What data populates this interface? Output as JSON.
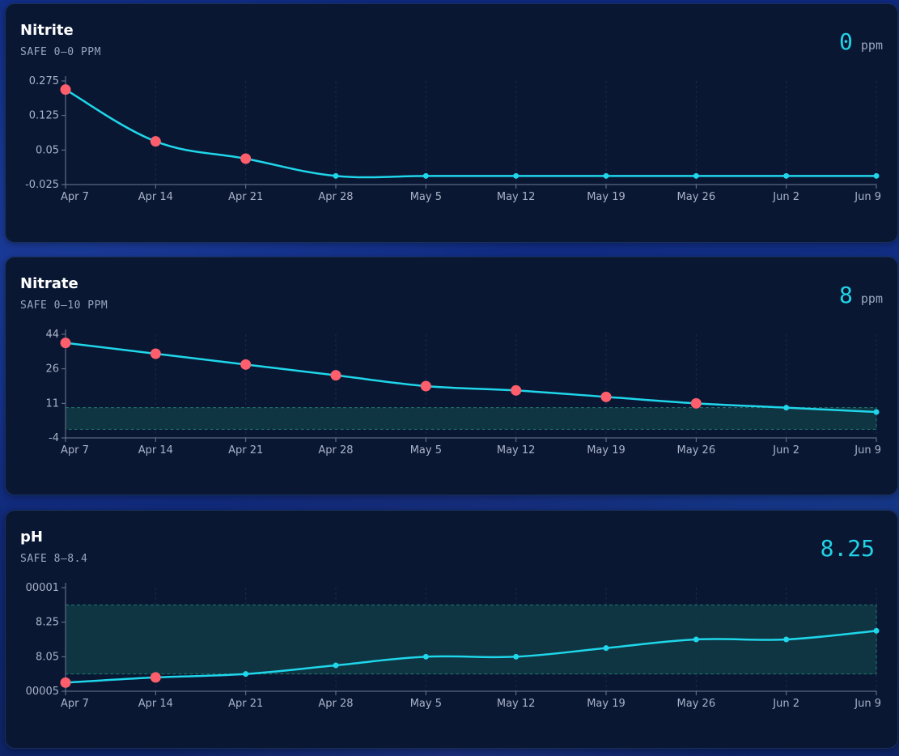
{
  "colors": {
    "line": "#1fd6ea",
    "alert_point": "#ff5e6c",
    "safe_fill": "#0f3b44",
    "safe_stroke": "#1f7a70",
    "axis": "#6d7894",
    "grid": "#1b2a4b"
  },
  "cards": [
    {
      "title": "Nitrite",
      "safe_label": "SAFE 0–0 PPM",
      "value": "0",
      "unit": "ppm"
    },
    {
      "title": "Nitrate",
      "safe_label": "SAFE 0–10 PPM",
      "value": "8",
      "unit": "ppm"
    },
    {
      "title": "pH",
      "safe_label": "SAFE 8–8.4",
      "value": "8.25",
      "unit": ""
    }
  ],
  "chart_data": [
    {
      "type": "line",
      "title": "Nitrite",
      "x": [
        "Apr 7",
        "Apr 14",
        "Apr 21",
        "Apr 28",
        "May 5",
        "May 12",
        "May 19",
        "May 26",
        "Jun 2",
        "Jun 9"
      ],
      "y": [
        0.25,
        0.1,
        0.05,
        0,
        0,
        0,
        0,
        0,
        0,
        0
      ],
      "alert": [
        true,
        true,
        true,
        false,
        false,
        false,
        false,
        false,
        false,
        false
      ],
      "yticks": [
        "0.275",
        "0.125",
        "0.05",
        "-0.025"
      ],
      "ylim": [
        -0.025,
        0.275
      ],
      "safe_range": [
        0,
        0
      ],
      "grid": true
    },
    {
      "type": "line",
      "title": "Nitrate",
      "x": [
        "Apr 7",
        "Apr 14",
        "Apr 21",
        "Apr 28",
        "May 5",
        "May 12",
        "May 19",
        "May 26",
        "Jun 2",
        "Jun 9"
      ],
      "y": [
        40,
        35,
        30,
        25,
        20,
        18,
        15,
        12,
        10,
        8
      ],
      "alert": [
        true,
        true,
        true,
        true,
        true,
        true,
        true,
        true,
        false,
        false
      ],
      "yticks": [
        "44",
        "26",
        "11",
        "-4"
      ],
      "ylim": [
        -4,
        44
      ],
      "safe_range": [
        0,
        10
      ],
      "grid": true
    },
    {
      "type": "line",
      "title": "pH",
      "x": [
        "Apr 7",
        "Apr 14",
        "Apr 21",
        "Apr 28",
        "May 5",
        "May 12",
        "May 19",
        "May 26",
        "Jun 2",
        "Jun 9"
      ],
      "y": [
        7.95,
        7.98,
        8.0,
        8.05,
        8.1,
        8.1,
        8.15,
        8.2,
        8.2,
        8.25
      ],
      "alert": [
        true,
        true,
        false,
        false,
        false,
        false,
        false,
        false,
        false,
        false
      ],
      "yticks": [
        "00001",
        "8.25",
        "8.05",
        "00005"
      ],
      "ylim": [
        7.9,
        8.5
      ],
      "safe_range": [
        8.0,
        8.4
      ],
      "grid": true
    }
  ]
}
